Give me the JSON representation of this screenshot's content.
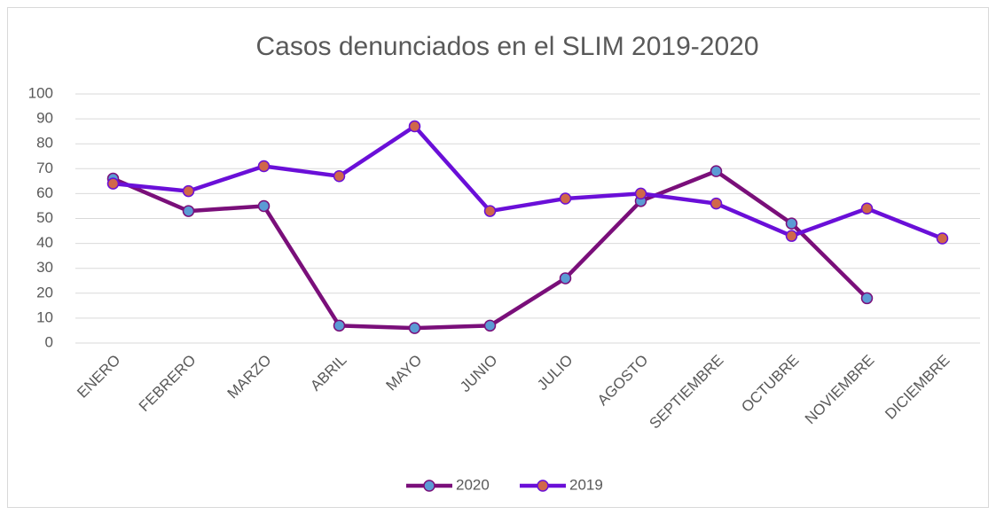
{
  "chart_data": {
    "type": "line",
    "title": "Casos denunciados en el SLIM 2019-2020",
    "categories": [
      "ENERO",
      "FEBRERO",
      "MARZO",
      "ABRIL",
      "MAYO",
      "JUNIO",
      "JULIO",
      "AGOSTO",
      "SEPTIEMBRE",
      "OCTUBRE",
      "NOVIEMBRE",
      "DICIEMBRE"
    ],
    "series": [
      {
        "name": "2020",
        "color": "#7a0f7a",
        "marker_color": "#5b9bd5",
        "values": [
          66,
          53,
          55,
          7,
          6,
          7,
          26,
          57,
          69,
          48,
          18,
          null
        ]
      },
      {
        "name": "2019",
        "color": "#6a0fd8",
        "marker_color": "#d0674a",
        "values": [
          64,
          61,
          71,
          67,
          87,
          53,
          58,
          60,
          56,
          43,
          54,
          42
        ]
      }
    ],
    "ylim": [
      0,
      100
    ],
    "yticks": [
      0,
      10,
      20,
      30,
      40,
      50,
      60,
      70,
      80,
      90,
      100
    ],
    "grid": true,
    "legend": "bottom"
  }
}
